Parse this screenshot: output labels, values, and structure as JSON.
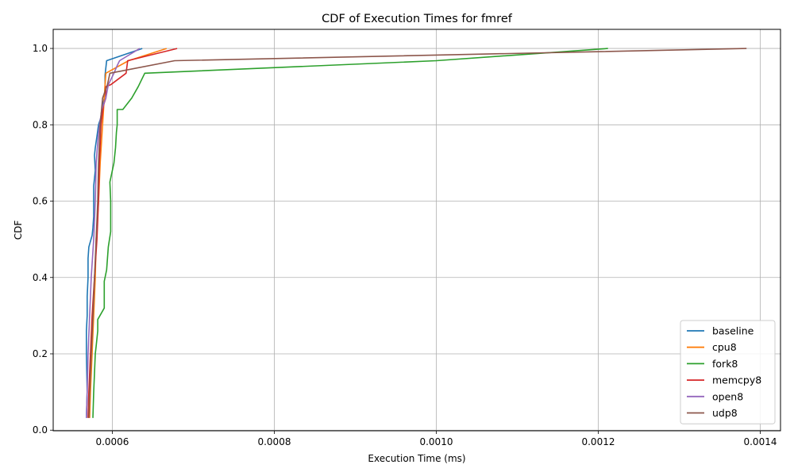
{
  "chart_data": {
    "type": "line",
    "title": "CDF of Execution Times for fmref",
    "xlabel": "Execution Time (ms)",
    "ylabel": "CDF",
    "xlim": [
      0.000527,
      0.001425
    ],
    "ylim": [
      -0.0016,
      1.05
    ],
    "xticks": [
      0.0006,
      0.0008,
      0.001,
      0.0012,
      0.0014
    ],
    "xtick_labels": [
      "0.0006",
      "0.0008",
      "0.0010",
      "0.0012",
      "0.0014"
    ],
    "yticks": [
      0.0,
      0.2,
      0.4,
      0.6,
      0.8,
      1.0
    ],
    "ytick_labels": [
      "0.0",
      "0.2",
      "0.4",
      "0.6",
      "0.8",
      "1.0"
    ],
    "grid": true,
    "legend_position": "lower-right",
    "series": [
      {
        "name": "baseline",
        "color": "#1f77b4",
        "points": [
          [
            0.000568,
            0.032
          ],
          [
            0.000569,
            0.1
          ],
          [
            0.000568,
            0.2
          ],
          [
            0.000568,
            0.26
          ],
          [
            0.000569,
            0.3
          ],
          [
            0.000569,
            0.35
          ],
          [
            0.00057,
            0.4
          ],
          [
            0.00057,
            0.45
          ],
          [
            0.000571,
            0.48
          ],
          [
            0.000575,
            0.51
          ],
          [
            0.000576,
            0.53
          ],
          [
            0.000577,
            0.56
          ],
          [
            0.000577,
            0.6
          ],
          [
            0.000577,
            0.64
          ],
          [
            0.000579,
            0.68
          ],
          [
            0.000578,
            0.72
          ],
          [
            0.000579,
            0.74
          ],
          [
            0.000581,
            0.77
          ],
          [
            0.000583,
            0.8
          ],
          [
            0.000586,
            0.82
          ],
          [
            0.000587,
            0.84
          ],
          [
            0.00059,
            0.87
          ],
          [
            0.000591,
            0.9
          ],
          [
            0.000591,
            0.93
          ],
          [
            0.000593,
            0.968
          ],
          [
            0.000637,
            1.0
          ]
        ]
      },
      {
        "name": "cpu8",
        "color": "#ff7f0e",
        "points": [
          [
            0.000572,
            0.032
          ],
          [
            0.000573,
            0.1
          ],
          [
            0.000575,
            0.2
          ],
          [
            0.000577,
            0.3
          ],
          [
            0.000579,
            0.4
          ],
          [
            0.00058,
            0.5
          ],
          [
            0.000583,
            0.6
          ],
          [
            0.000585,
            0.7
          ],
          [
            0.000588,
            0.8
          ],
          [
            0.00059,
            0.87
          ],
          [
            0.000591,
            0.905
          ],
          [
            0.000592,
            0.935
          ],
          [
            0.00062,
            0.968
          ],
          [
            0.000667,
            1.0
          ]
        ]
      },
      {
        "name": "fork8",
        "color": "#2ca02c",
        "points": [
          [
            0.000576,
            0.032
          ],
          [
            0.000577,
            0.1
          ],
          [
            0.000578,
            0.15
          ],
          [
            0.000579,
            0.2
          ],
          [
            0.00058,
            0.22
          ],
          [
            0.000582,
            0.26
          ],
          [
            0.000582,
            0.29
          ],
          [
            0.00059,
            0.32
          ],
          [
            0.00059,
            0.39
          ],
          [
            0.000593,
            0.42
          ],
          [
            0.000595,
            0.48
          ],
          [
            0.000598,
            0.52
          ],
          [
            0.000598,
            0.6
          ],
          [
            0.000597,
            0.65
          ],
          [
            0.000602,
            0.7
          ],
          [
            0.000604,
            0.74
          ],
          [
            0.000605,
            0.78
          ],
          [
            0.000606,
            0.8
          ],
          [
            0.000606,
            0.84
          ],
          [
            0.000613,
            0.84
          ],
          [
            0.000624,
            0.87
          ],
          [
            0.000632,
            0.9
          ],
          [
            0.00064,
            0.935
          ],
          [
            0.001,
            0.968
          ],
          [
            0.001212,
            1.0
          ]
        ]
      },
      {
        "name": "memcpy8",
        "color": "#d62728",
        "points": [
          [
            0.00057,
            0.032
          ],
          [
            0.000571,
            0.1
          ],
          [
            0.000573,
            0.2
          ],
          [
            0.000575,
            0.3
          ],
          [
            0.000578,
            0.4
          ],
          [
            0.000581,
            0.5
          ],
          [
            0.000583,
            0.6
          ],
          [
            0.000584,
            0.7
          ],
          [
            0.000585,
            0.75
          ],
          [
            0.000586,
            0.8
          ],
          [
            0.000589,
            0.85
          ],
          [
            0.000592,
            0.87
          ],
          [
            0.000592,
            0.9
          ],
          [
            0.000598,
            0.905
          ],
          [
            0.000617,
            0.935
          ],
          [
            0.000619,
            0.968
          ],
          [
            0.00068,
            1.0
          ]
        ]
      },
      {
        "name": "open8",
        "color": "#9467bd",
        "points": [
          [
            0.000568,
            0.032
          ],
          [
            0.000569,
            0.1
          ],
          [
            0.00057,
            0.2
          ],
          [
            0.000572,
            0.3
          ],
          [
            0.000574,
            0.4
          ],
          [
            0.000577,
            0.5
          ],
          [
            0.000579,
            0.6
          ],
          [
            0.00058,
            0.7
          ],
          [
            0.000583,
            0.78
          ],
          [
            0.000587,
            0.84
          ],
          [
            0.000592,
            0.87
          ],
          [
            0.000595,
            0.905
          ],
          [
            0.000602,
            0.935
          ],
          [
            0.000606,
            0.955
          ],
          [
            0.000609,
            0.968
          ],
          [
            0.000634,
            1.0
          ]
        ]
      },
      {
        "name": "udp8",
        "color": "#8c564b",
        "points": [
          [
            0.000571,
            0.032
          ],
          [
            0.000572,
            0.1
          ],
          [
            0.000574,
            0.2
          ],
          [
            0.000576,
            0.3
          ],
          [
            0.000578,
            0.4
          ],
          [
            0.00058,
            0.5
          ],
          [
            0.000582,
            0.6
          ],
          [
            0.000583,
            0.7
          ],
          [
            0.000585,
            0.8
          ],
          [
            0.000588,
            0.87
          ],
          [
            0.000594,
            0.905
          ],
          [
            0.000597,
            0.935
          ],
          [
            0.000677,
            0.968
          ],
          [
            0.001383,
            1.0
          ]
        ]
      }
    ]
  }
}
